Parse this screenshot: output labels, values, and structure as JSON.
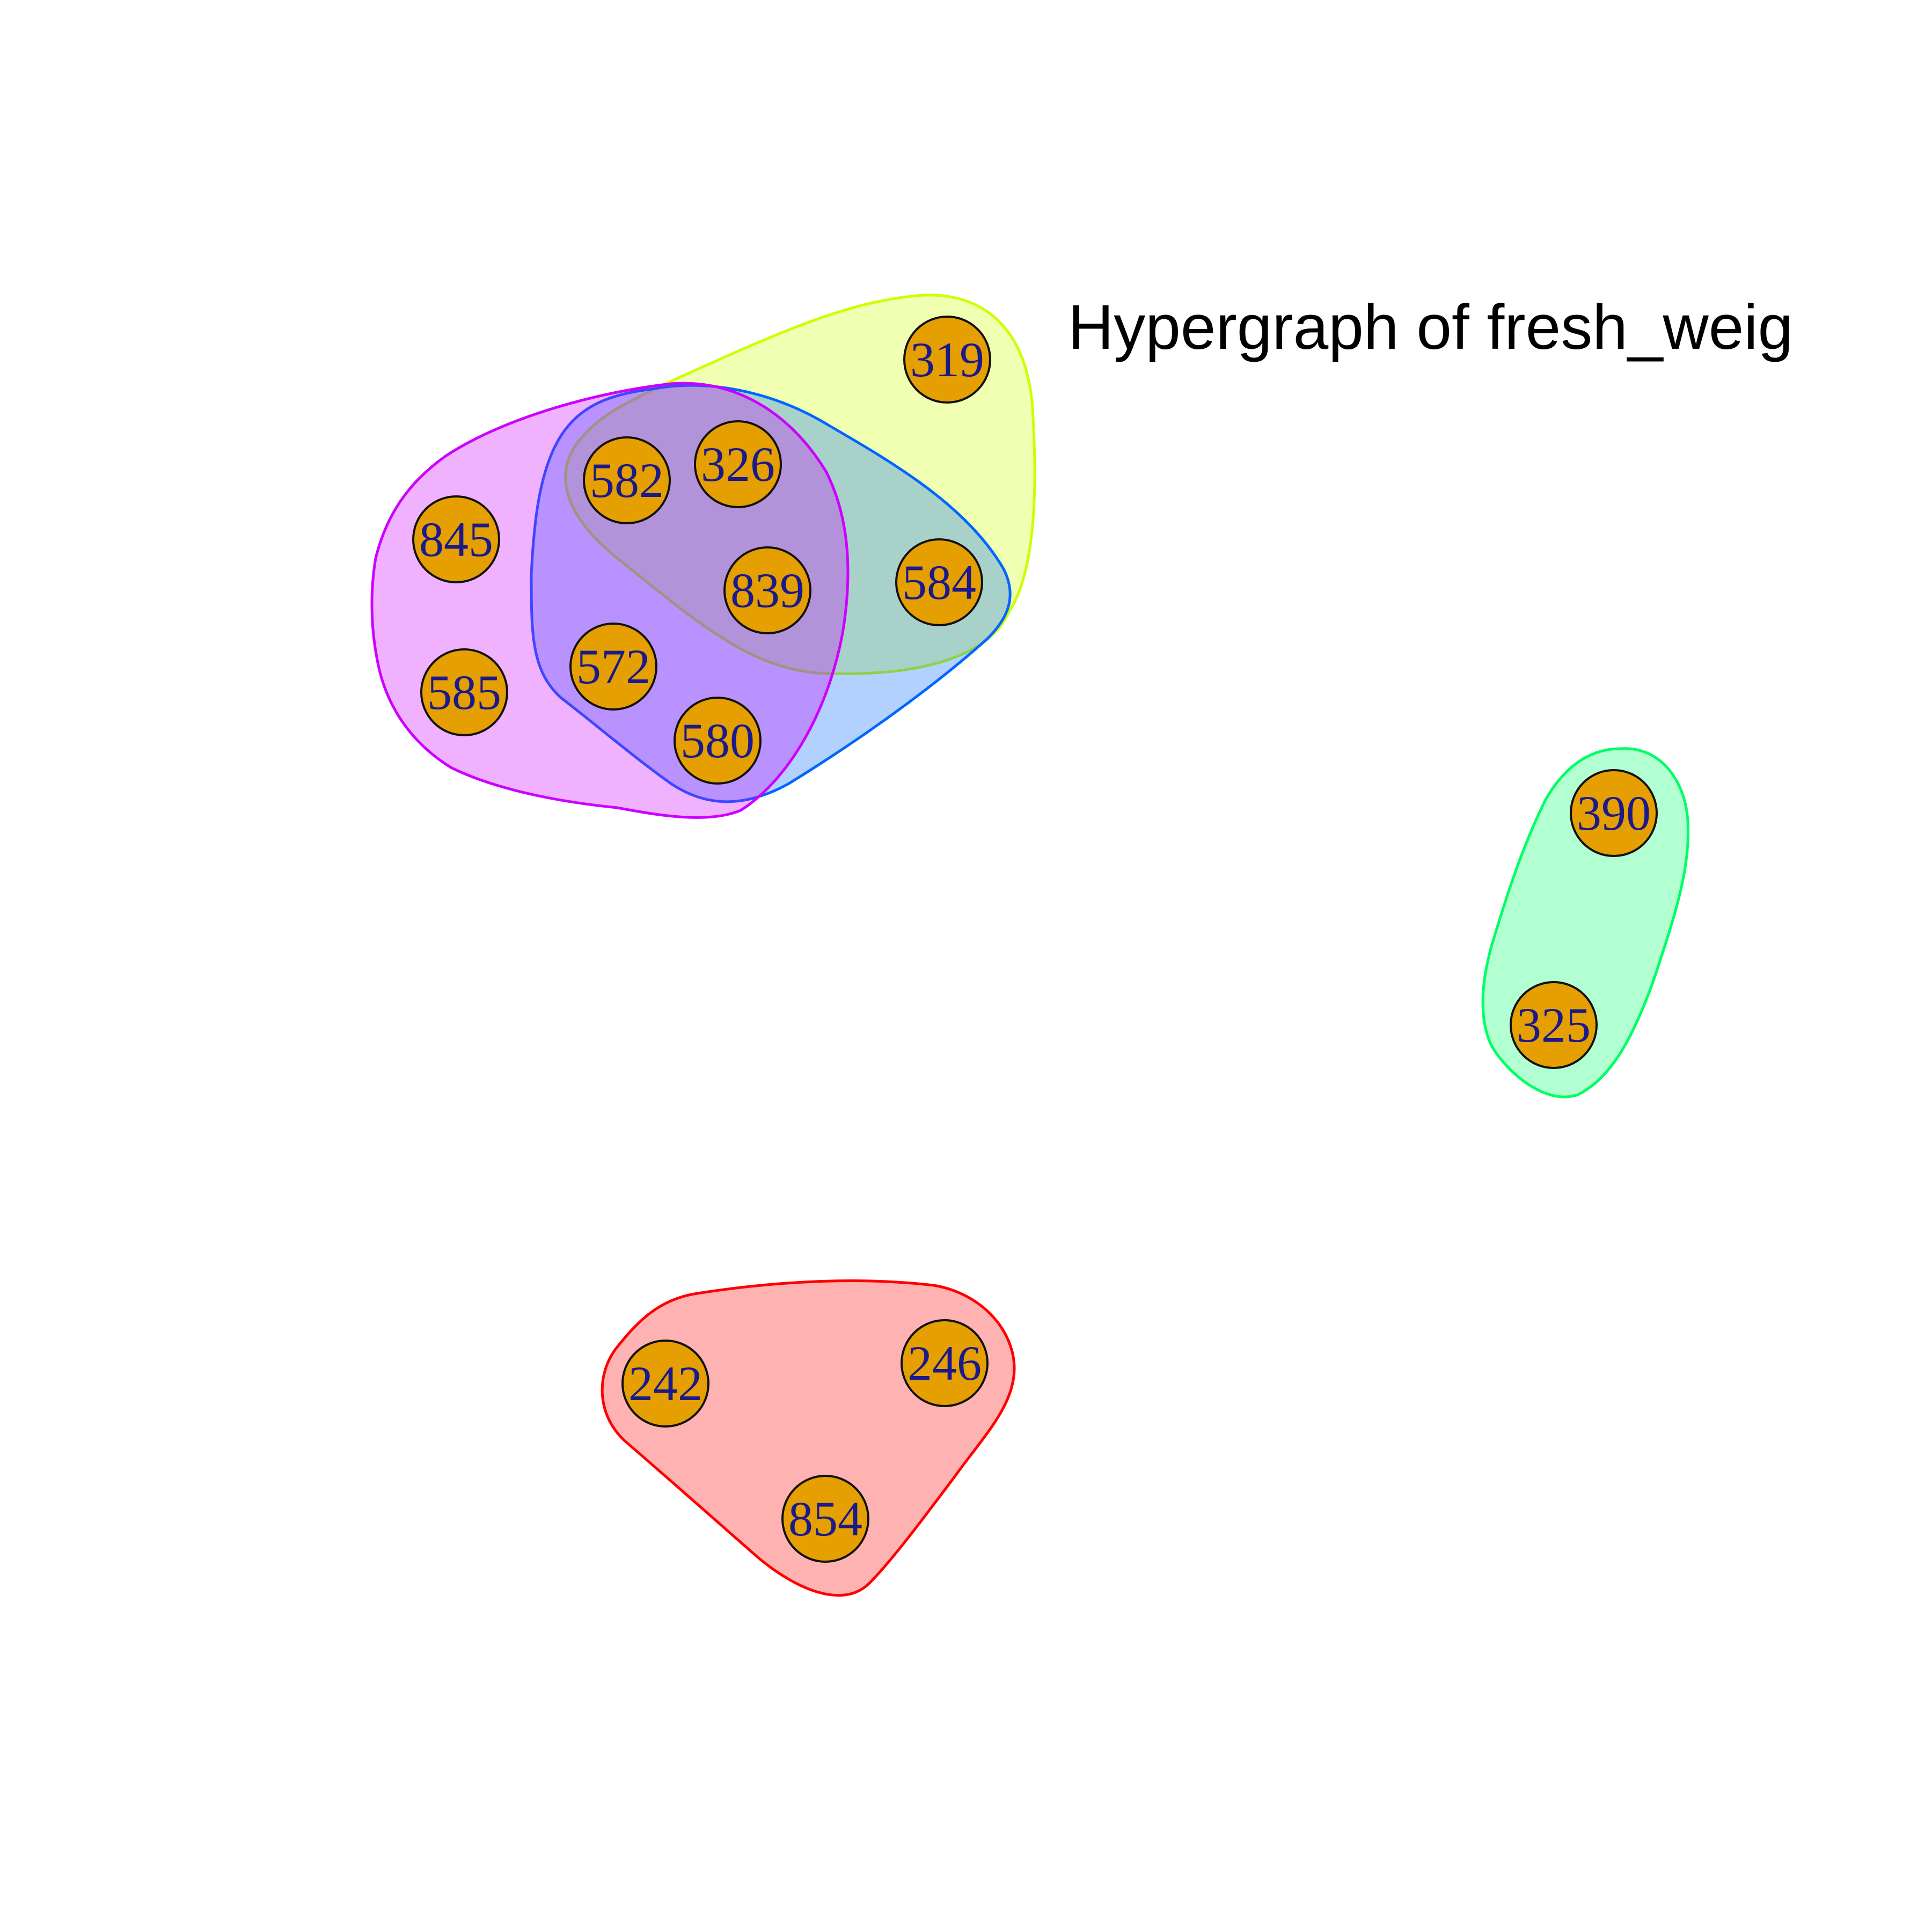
{
  "title": "Hypergraph of fresh_weig",
  "colors": {
    "node_fill": "#e69f00",
    "node_border": "#111111",
    "label": "#1a1a8a",
    "edges": {
      "yellow": "#ccff00",
      "blue": "#0066ff",
      "magenta": "#cc00ff",
      "green": "#00ff66",
      "red": "#ff0000"
    }
  },
  "nodes": [
    "319",
    "326",
    "582",
    "845",
    "839",
    "584",
    "572",
    "585",
    "580",
    "390",
    "325",
    "246",
    "242",
    "854"
  ],
  "hyperedges": [
    {
      "name": "yellow",
      "members": [
        "319",
        "326",
        "582",
        "839",
        "584"
      ]
    },
    {
      "name": "blue",
      "members": [
        "326",
        "582",
        "839",
        "584",
        "572",
        "580"
      ]
    },
    {
      "name": "magenta",
      "members": [
        "845",
        "585",
        "582",
        "326",
        "839",
        "572",
        "580"
      ]
    },
    {
      "name": "green",
      "members": [
        "390",
        "325"
      ]
    },
    {
      "name": "red",
      "members": [
        "242",
        "246",
        "854"
      ]
    }
  ]
}
